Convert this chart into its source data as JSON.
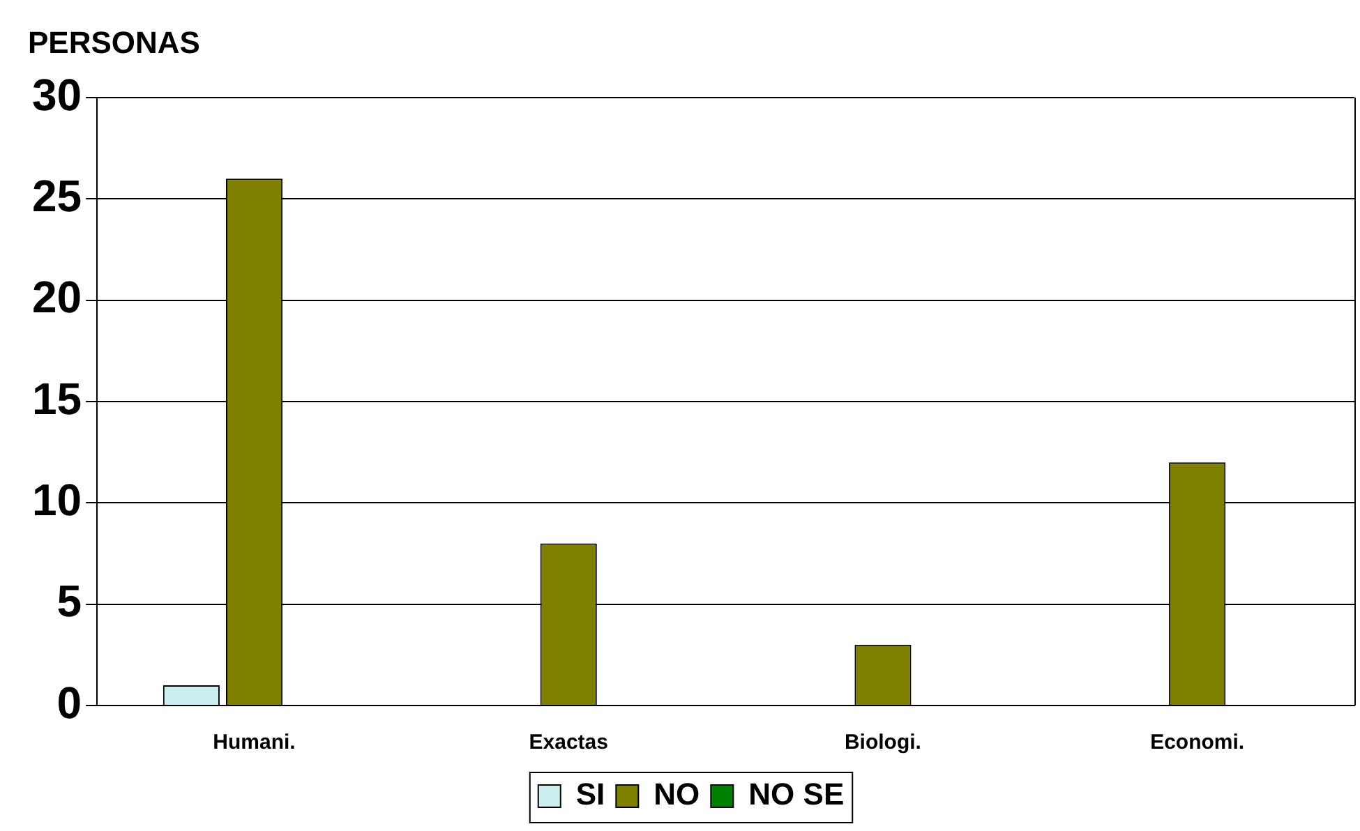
{
  "chart_data": {
    "type": "bar",
    "ylabel": "PERSONAS",
    "categories": [
      "Humani.",
      "Exactas",
      "Biologi.",
      "Economi."
    ],
    "series": [
      {
        "name": "SI",
        "color": "#cceeee",
        "values": [
          1,
          0,
          0,
          0
        ]
      },
      {
        "name": "NO",
        "color": "#808000",
        "values": [
          26,
          8,
          3,
          12
        ]
      },
      {
        "name": "NO SE",
        "color": "#008000",
        "values": [
          0,
          0,
          0,
          0
        ]
      }
    ],
    "ylim": [
      0,
      30
    ],
    "yticks": [
      0,
      5,
      10,
      15,
      20,
      25,
      30
    ],
    "grid": "y",
    "legend": "bottom"
  }
}
